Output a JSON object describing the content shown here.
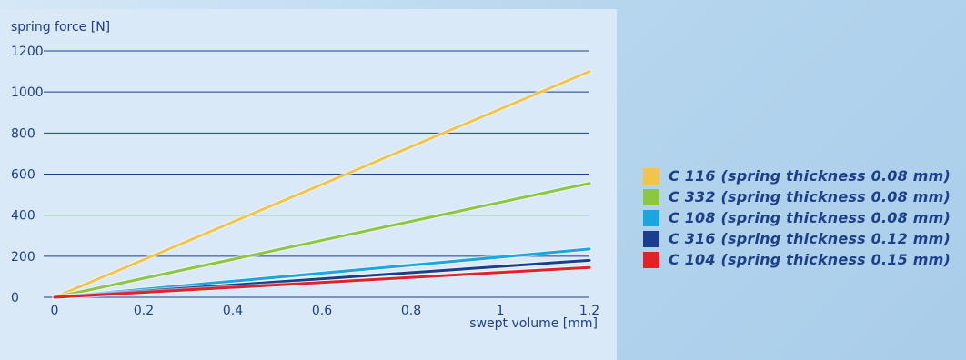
{
  "chart_data": {
    "type": "line",
    "title": "",
    "xlabel": "swept volume [mm]",
    "ylabel": "spring force [N]",
    "xlim": [
      0,
      1.2
    ],
    "ylim": [
      0,
      1200
    ],
    "x_ticks": [
      "0",
      "0.2",
      "0.4",
      "0.6",
      "0.8",
      "1",
      "1.2"
    ],
    "y_ticks": [
      "0",
      "200",
      "400",
      "600",
      "800",
      "1000",
      "1200"
    ],
    "grid": "horizontal",
    "legend_position": "right",
    "x": [
      0,
      1.2
    ],
    "series": [
      {
        "name": "C 116 (spring thickness 0.08 mm)",
        "color": "#f2c44a",
        "values": [
          0,
          1100
        ]
      },
      {
        "name": "C 332 (spring thickness 0.08 mm)",
        "color": "#8dc63f",
        "values": [
          0,
          555
        ]
      },
      {
        "name": "C 108 (spring thickness 0.08 mm)",
        "color": "#1aa7e0",
        "values": [
          0,
          235
        ]
      },
      {
        "name": "C 316 (spring thickness 0.12 mm)",
        "color": "#1b3f8f",
        "values": [
          0,
          180
        ]
      },
      {
        "name": "C 104 (spring thickness 0.15 mm)",
        "color": "#e32127",
        "values": [
          0,
          145
        ]
      }
    ]
  }
}
